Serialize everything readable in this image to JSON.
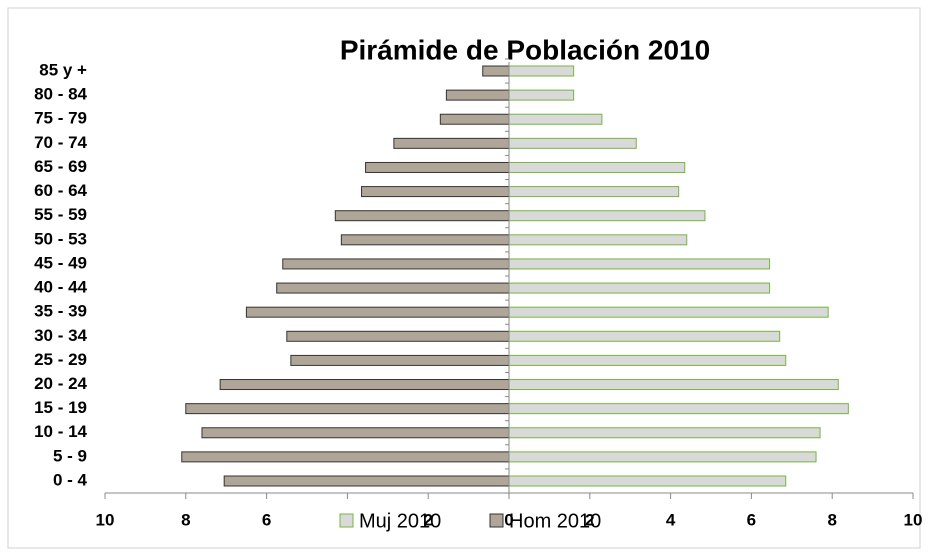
{
  "chart_data": {
    "type": "population-pyramid",
    "title": "Pirámide de Población 2010",
    "categories": [
      "0 - 4",
      "5 - 9",
      "10 - 14",
      "15 - 19",
      "20 - 24",
      "25 - 29",
      "30 - 34",
      "35 - 39",
      "40 - 44",
      "45 - 49",
      "50 - 53",
      "55 - 59",
      "60 - 64",
      "65 - 69",
      "70 - 74",
      "75 - 79",
      "80 - 84",
      "85 y +"
    ],
    "series": [
      {
        "name": "Muj 2010",
        "color": "#d9d9d9",
        "edge": "#77b540",
        "values": [
          6.85,
          7.6,
          7.7,
          8.4,
          8.15,
          6.85,
          6.7,
          7.9,
          6.45,
          6.45,
          4.4,
          4.85,
          4.2,
          4.35,
          3.15,
          2.3,
          1.6,
          1.6
        ]
      },
      {
        "name": "Hom 2010",
        "color": "#b0a698",
        "edge": "#333333",
        "values": [
          -7.05,
          -8.1,
          -7.6,
          -8.0,
          -7.15,
          -5.4,
          -5.5,
          -6.5,
          -5.75,
          -5.6,
          -4.15,
          -4.3,
          -3.65,
          -3.55,
          -2.85,
          -1.7,
          -1.55,
          -0.65
        ]
      }
    ],
    "xlim": [
      -10,
      10
    ],
    "xticks": [
      {
        "value": -10,
        "label": "10"
      },
      {
        "value": -8,
        "label": "8"
      },
      {
        "value": -6,
        "label": "6"
      },
      {
        "value": -4,
        "label": "4"
      },
      {
        "value": -2,
        "label": "2"
      },
      0,
      2,
      4,
      6,
      8,
      10
    ],
    "legend": "bottom"
  }
}
